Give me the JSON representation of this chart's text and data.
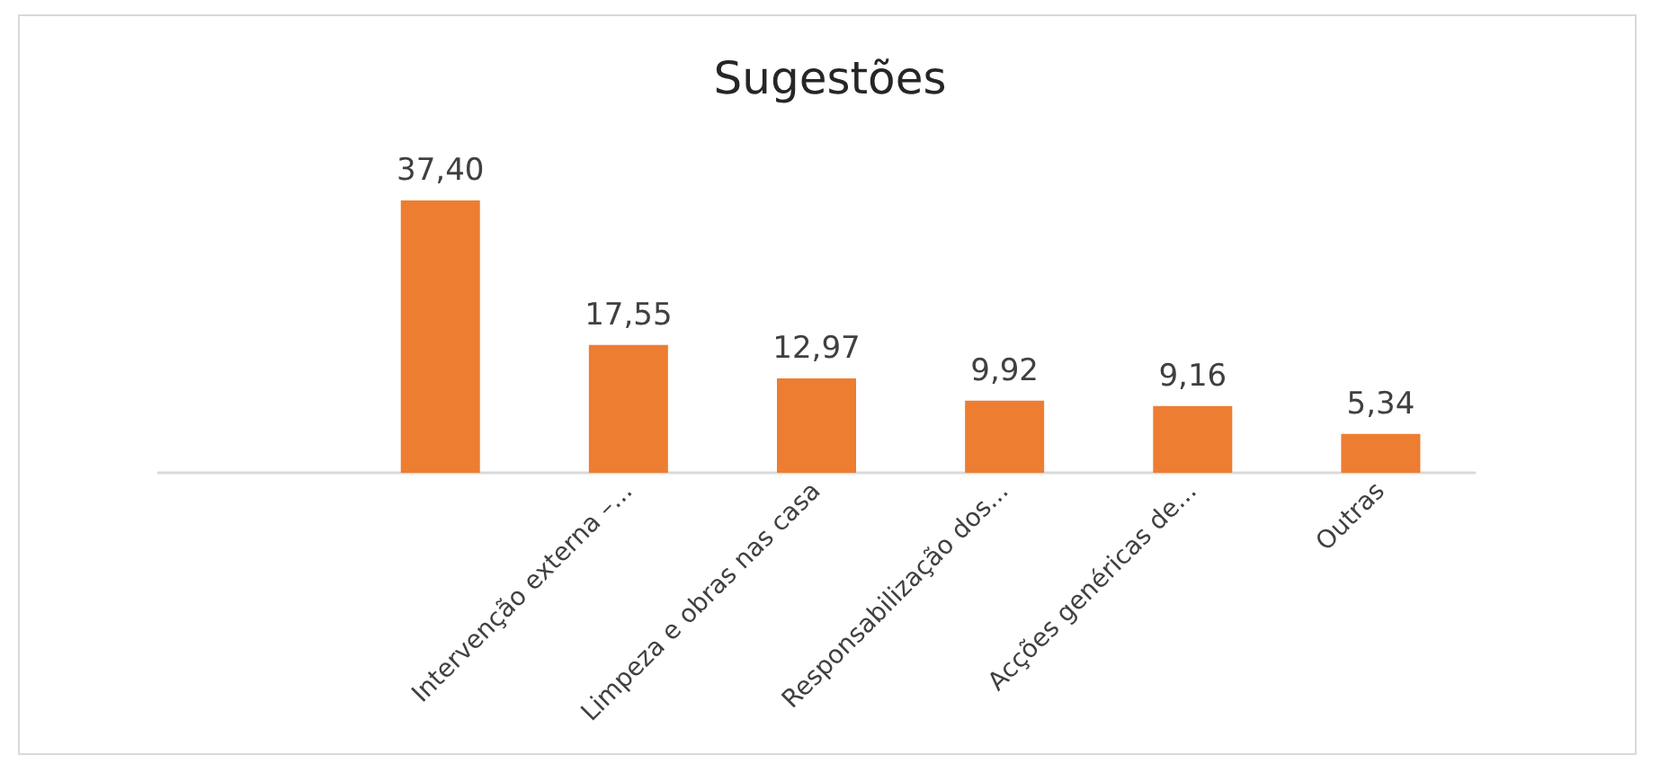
{
  "chart_data": {
    "type": "bar",
    "title": "Sugestões",
    "categories": [
      null,
      null,
      "Intervenção externa –...",
      "Limpeza e obras nas casa",
      "Responsabilização dos...",
      "Acções genéricas de...",
      "Outras"
    ],
    "values": [
      null,
      37.4,
      17.55,
      12.97,
      9.92,
      9.16,
      5.34
    ],
    "value_labels": [
      null,
      "37,40",
      "17,55",
      "12,97",
      "9,92",
      "9,16",
      "5,34"
    ],
    "color": "#ed7d31"
  }
}
